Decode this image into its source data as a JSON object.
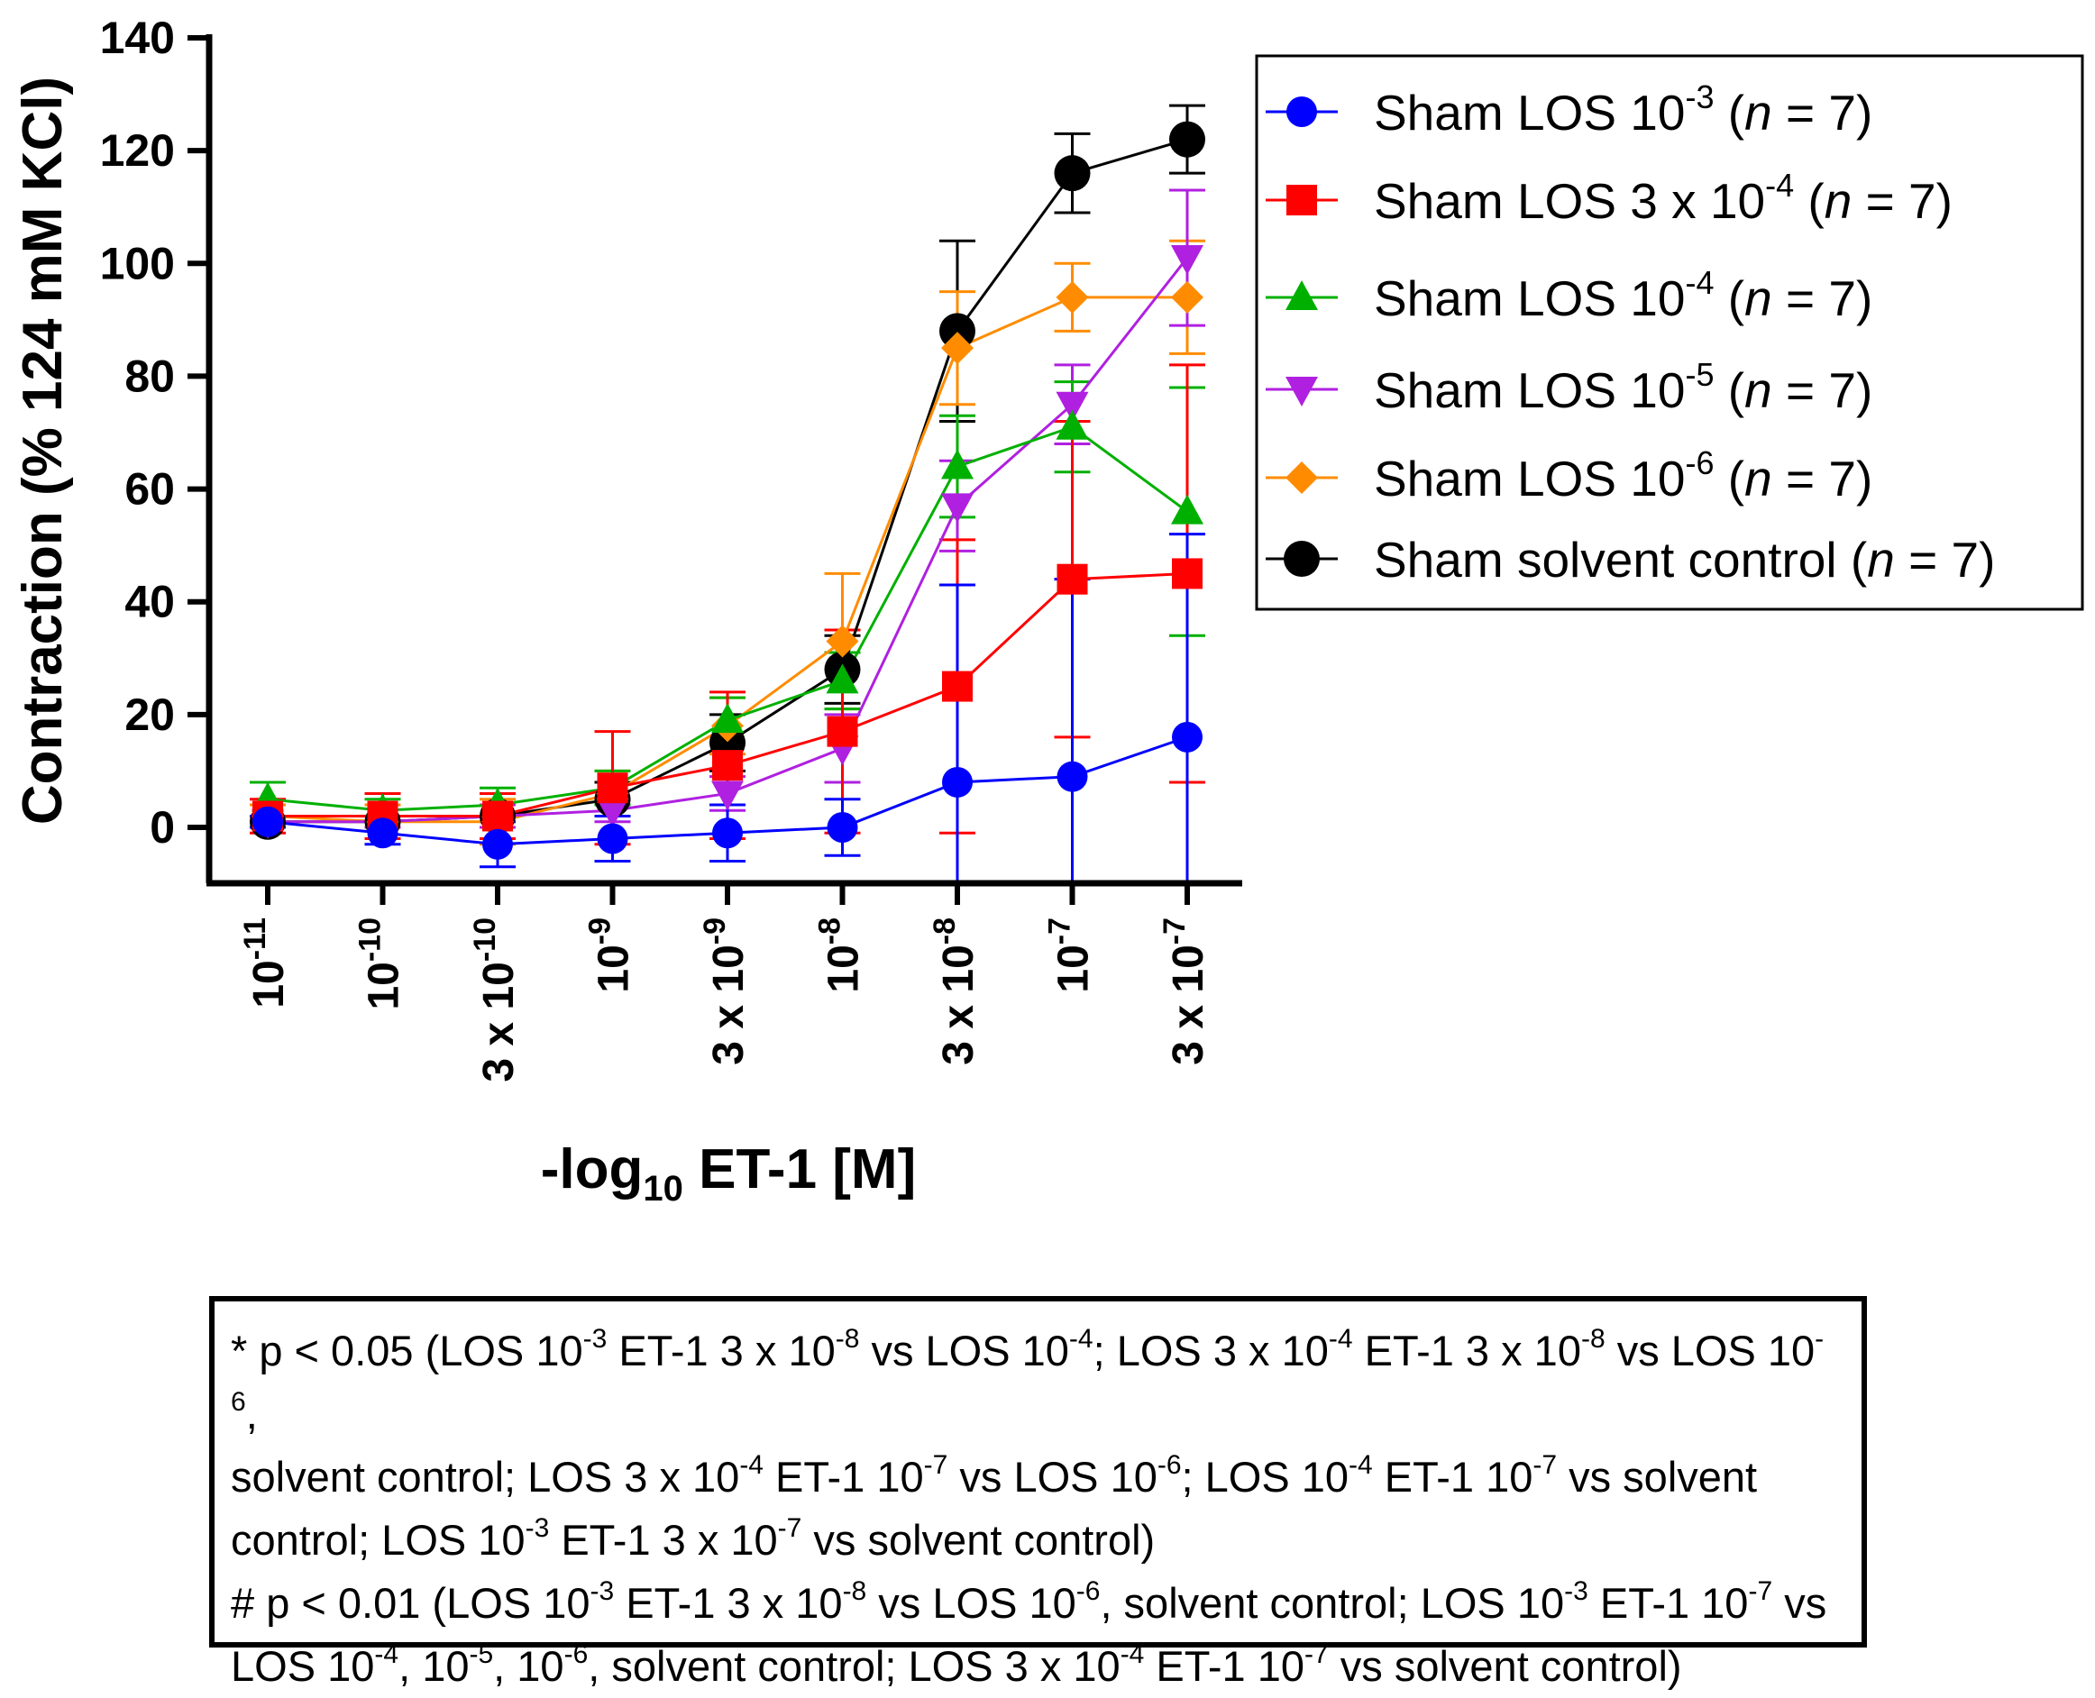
{
  "chart_data": {
    "type": "line",
    "ylabel": "Contraction (% 124 mM KCl)",
    "xlabel": {
      "prefix": "-log",
      "sub": "10",
      "suffix": " ET-1 [M]"
    },
    "ylim": [
      -10,
      140
    ],
    "yticks": [
      0,
      20,
      40,
      60,
      80,
      100,
      120,
      140
    ],
    "categories": [
      {
        "base": "10",
        "exp": "-11"
      },
      {
        "base": "10",
        "exp": "-10"
      },
      {
        "base": "3 x 10",
        "exp": "-10"
      },
      {
        "base": "10",
        "exp": "-9"
      },
      {
        "base": "3 x 10",
        "exp": "-9"
      },
      {
        "base": "10",
        "exp": "-8"
      },
      {
        "base": "3 x 10",
        "exp": "-8"
      },
      {
        "base": "10",
        "exp": "-7"
      },
      {
        "base": "3 x 10",
        "exp": "-7"
      }
    ],
    "series": [
      {
        "name": "Sham solvent control",
        "legend": {
          "pre": "Sham solvent control",
          "sup": "",
          "post": " (",
          "n": "n",
          "tail": " = 7)"
        },
        "color": "#000000",
        "marker": "circle-big",
        "values": [
          1,
          1,
          2,
          5,
          15,
          28,
          88,
          116,
          122
        ],
        "errors": [
          1,
          1,
          2,
          3,
          5,
          6,
          16,
          7,
          6
        ]
      },
      {
        "name": "Sham LOS 10-6",
        "legend": {
          "pre": "Sham LOS 10",
          "sup": "-6",
          "post": " (",
          "n": "n",
          "tail": " = 7)"
        },
        "color": "#ff8c00",
        "marker": "diamond",
        "values": [
          2,
          1,
          1,
          6,
          18,
          33,
          85,
          94,
          94
        ],
        "errors": [
          2,
          3,
          4,
          4,
          5,
          12,
          10,
          6,
          10
        ]
      },
      {
        "name": "Sham LOS 10-5",
        "legend": {
          "pre": "Sham LOS 10",
          "sup": "-5",
          "post": " (",
          "n": "n",
          "tail": " = 7)"
        },
        "color": "#b020e0",
        "marker": "triangle-down",
        "values": [
          1,
          1,
          2,
          3,
          6,
          14,
          57,
          75,
          101
        ],
        "errors": [
          1,
          1,
          2,
          2,
          3,
          6,
          8,
          7,
          12
        ]
      },
      {
        "name": "Sham LOS 10-4",
        "legend": {
          "pre": "Sham LOS 10",
          "sup": "-4",
          "post": "   (",
          "n": "n",
          "tail": " = 7)"
        },
        "color": "#00b000",
        "marker": "triangle-up",
        "values": [
          5,
          3,
          4,
          7,
          19,
          26,
          64,
          71,
          56
        ],
        "errors": [
          3,
          2,
          3,
          3,
          4,
          5,
          9,
          8,
          22
        ]
      },
      {
        "name": "Sham LOS 3 x 10-4",
        "legend": {
          "pre": "Sham LOS 3 x 10",
          "sup": "-4",
          "post": " (",
          "n": "n",
          "tail": " = 7)"
        },
        "color": "#ff0000",
        "marker": "square",
        "values": [
          2,
          2,
          2,
          7,
          11,
          17,
          25,
          44,
          45
        ],
        "errors": [
          3,
          4,
          4,
          10,
          13,
          18,
          26,
          28,
          37
        ]
      },
      {
        "name": "Sham LOS 10-3",
        "legend": {
          "pre": "Sham LOS 10",
          "sup": "-3",
          "post": " (",
          "n": "n",
          "tail": " = 7)"
        },
        "color": "#0000ff",
        "marker": "circle",
        "values": [
          1,
          -1,
          -3,
          -2,
          -1,
          0,
          8,
          9,
          16
        ],
        "errors": [
          1,
          2,
          4,
          4,
          5,
          5,
          35,
          35,
          36
        ]
      }
    ],
    "legend_order": [
      5,
      4,
      3,
      2,
      1,
      0
    ],
    "legend_placement": "right"
  },
  "note": {
    "line1": [
      {
        "t": "* p < 0.05 (LOS 10"
      },
      {
        "s": "-3"
      },
      {
        "t": " ET-1 3 x 10"
      },
      {
        "s": "-8"
      },
      {
        "t": " vs LOS 10"
      },
      {
        "s": "-4"
      },
      {
        "t": "; LOS 3 x 10"
      },
      {
        "s": "-4"
      },
      {
        "t": " ET-1 3 x 10"
      },
      {
        "s": "-8"
      },
      {
        "t": " vs LOS 10"
      },
      {
        "s": "-6"
      },
      {
        "t": ","
      }
    ],
    "line2": [
      {
        "t": "solvent control; LOS 3 x 10"
      },
      {
        "s": "-4"
      },
      {
        "t": " ET-1 10"
      },
      {
        "s": "-7"
      },
      {
        "t": " vs LOS 10"
      },
      {
        "s": "-6"
      },
      {
        "t": "; LOS 10"
      },
      {
        "s": "-4"
      },
      {
        "t": " ET-1 10"
      },
      {
        "s": "-7"
      },
      {
        "t": " vs solvent"
      }
    ],
    "line3": [
      {
        "t": "control; LOS 10"
      },
      {
        "s": "-3"
      },
      {
        "t": " ET-1 3 x 10"
      },
      {
        "s": "-7"
      },
      {
        "t": " vs solvent control)"
      }
    ],
    "line4": [
      {
        "t": "# p < 0.01 (LOS 10"
      },
      {
        "s": "-3"
      },
      {
        "t": " ET-1 3 x 10"
      },
      {
        "s": "-8"
      },
      {
        "t": " vs LOS 10"
      },
      {
        "s": "-6"
      },
      {
        "t": ", solvent control; LOS 10"
      },
      {
        "s": "-3"
      },
      {
        "t": " ET-1 10"
      },
      {
        "s": "-7"
      },
      {
        "t": " vs"
      }
    ],
    "line5": [
      {
        "t": "LOS 10"
      },
      {
        "s": "-4"
      },
      {
        "t": ", 10"
      },
      {
        "s": "-5"
      },
      {
        "t": ", 10"
      },
      {
        "s": "-6"
      },
      {
        "t": ", solvent control; LOS 3 x 10"
      },
      {
        "s": "-4"
      },
      {
        "t": " ET-1 10"
      },
      {
        "s": "-7"
      },
      {
        "t": " vs solvent control)"
      }
    ]
  }
}
